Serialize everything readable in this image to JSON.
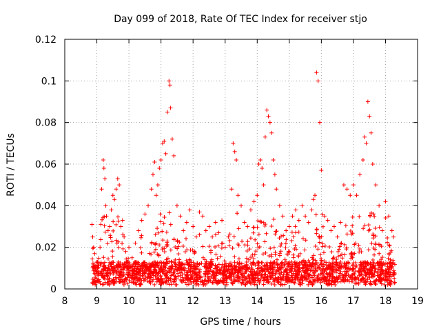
{
  "chart_data": {
    "type": "scatter",
    "title": "Day 099 of 2018, Rate Of TEC Index for receiver stjo",
    "xlabel": "GPS time / hours",
    "ylabel": "ROTI / TECUs",
    "xlim": [
      8,
      19
    ],
    "ylim": [
      0,
      0.12
    ],
    "x_ticks": [
      8,
      9,
      10,
      11,
      12,
      13,
      14,
      15,
      16,
      17,
      18,
      19
    ],
    "y_ticks": [
      0,
      0.02,
      0.04,
      0.06,
      0.08,
      0.1,
      0.12
    ],
    "x_tick_labels": [
      "8",
      "9",
      "10",
      "11",
      "12",
      "13",
      "14",
      "15",
      "16",
      "17",
      "18",
      "19"
    ],
    "y_tick_labels": [
      "0",
      "0.02",
      "0.04",
      "0.06",
      "0.08",
      "0.1",
      "0.12"
    ],
    "grid": true,
    "marker": "+",
    "colors": {
      "marker": "#ff0000",
      "grid": "#a0a0a0",
      "axes": "#000000"
    },
    "series": [
      {
        "name": "ROTI",
        "x": [
          8.85,
          8.87,
          8.9,
          8.93,
          8.96,
          9.0,
          9.05,
          9.1,
          9.15,
          9.2,
          9.22,
          9.25,
          9.28,
          9.3,
          9.35,
          9.4,
          9.45,
          9.5,
          9.55,
          9.6,
          9.65,
          9.7,
          9.75,
          9.8,
          9.85,
          9.9,
          10.0,
          10.1,
          10.2,
          10.3,
          10.4,
          10.5,
          10.6,
          10.7,
          10.75,
          10.8,
          10.85,
          10.9,
          10.95,
          11.0,
          11.05,
          11.1,
          11.15,
          11.2,
          11.25,
          11.28,
          11.3,
          11.35,
          11.4,
          11.5,
          11.6,
          11.7,
          11.8,
          11.9,
          12.0,
          12.1,
          12.2,
          12.3,
          12.4,
          12.5,
          12.6,
          12.7,
          12.8,
          12.9,
          13.0,
          13.1,
          13.2,
          13.25,
          13.3,
          13.35,
          13.4,
          13.5,
          13.6,
          13.7,
          13.8,
          13.9,
          14.0,
          14.05,
          14.1,
          14.15,
          14.2,
          14.25,
          14.3,
          14.35,
          14.4,
          14.45,
          14.5,
          14.55,
          14.6,
          14.7,
          14.8,
          14.9,
          15.0,
          15.1,
          15.2,
          15.3,
          15.4,
          15.5,
          15.6,
          15.7,
          15.75,
          15.8,
          15.85,
          15.9,
          15.95,
          16.0,
          16.1,
          16.2,
          16.3,
          16.4,
          16.5,
          16.6,
          16.7,
          16.8,
          16.9,
          17.0,
          17.1,
          17.2,
          17.3,
          17.35,
          17.4,
          17.45,
          17.5,
          17.55,
          17.6,
          17.7,
          17.8,
          17.9,
          18.0,
          18.1,
          18.2,
          18.25
        ],
        "y": [
          0.031,
          0.025,
          0.02,
          0.017,
          0.01,
          0.005,
          0.007,
          0.02,
          0.048,
          0.062,
          0.058,
          0.053,
          0.04,
          0.035,
          0.028,
          0.03,
          0.038,
          0.045,
          0.043,
          0.048,
          0.053,
          0.05,
          0.03,
          0.033,
          0.025,
          0.018,
          0.02,
          0.015,
          0.022,
          0.028,
          0.033,
          0.036,
          0.04,
          0.048,
          0.055,
          0.061,
          0.045,
          0.05,
          0.058,
          0.062,
          0.07,
          0.071,
          0.065,
          0.085,
          0.1,
          0.098,
          0.087,
          0.072,
          0.064,
          0.04,
          0.035,
          0.028,
          0.032,
          0.038,
          0.03,
          0.025,
          0.037,
          0.035,
          0.028,
          0.03,
          0.025,
          0.032,
          0.027,
          0.033,
          0.02,
          0.025,
          0.048,
          0.07,
          0.066,
          0.062,
          0.045,
          0.04,
          0.032,
          0.03,
          0.038,
          0.042,
          0.045,
          0.06,
          0.062,
          0.058,
          0.05,
          0.073,
          0.086,
          0.083,
          0.08,
          0.075,
          0.062,
          0.055,
          0.048,
          0.04,
          0.035,
          0.028,
          0.03,
          0.035,
          0.038,
          0.033,
          0.04,
          0.035,
          0.032,
          0.038,
          0.043,
          0.045,
          0.104,
          0.1,
          0.08,
          0.057,
          0.035,
          0.033,
          0.028,
          0.03,
          0.025,
          0.032,
          0.05,
          0.048,
          0.045,
          0.05,
          0.045,
          0.055,
          0.062,
          0.073,
          0.07,
          0.09,
          0.083,
          0.075,
          0.06,
          0.05,
          0.04,
          0.028,
          0.042,
          0.035,
          0.028,
          0.025
        ]
      }
    ]
  }
}
